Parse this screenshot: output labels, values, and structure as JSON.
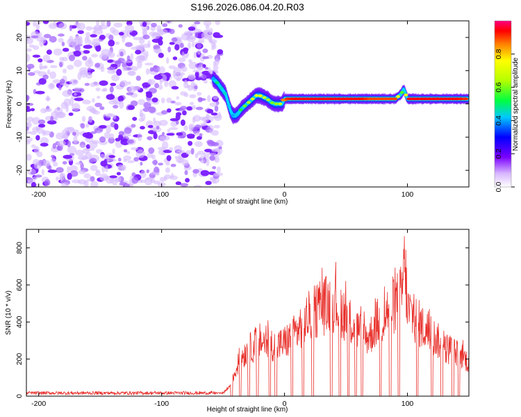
{
  "title": "S196.2026.086.04.20.R03",
  "chart_data": [
    {
      "type": "heatmap",
      "xlabel": "Height of straight line (km)",
      "ylabel": "Frequency (Hz)",
      "xlim": [
        -210,
        150
      ],
      "ylim": [
        -25,
        25
      ],
      "xticks": [
        -200,
        -100,
        0,
        100
      ],
      "yticks": [
        -20,
        -10,
        0,
        10,
        20
      ],
      "colorbar": {
        "label": "Normalized spectral amplitude",
        "range": [
          0,
          1
        ],
        "ticks": [
          "0.0",
          "0.2",
          "0.4",
          "0.6",
          "0.8"
        ],
        "tick_values": [
          0.0,
          0.2,
          0.4,
          0.6,
          0.8
        ]
      },
      "noise_region_x": [
        -210,
        -52
      ],
      "ridge": {
        "x": [
          -58,
          -55,
          -52,
          -48,
          -46,
          -44,
          -42,
          -40,
          -38,
          -35,
          -32,
          -29,
          -26,
          -23,
          -20,
          -17,
          -14,
          -11,
          -8,
          -5,
          -2,
          0,
          10,
          20,
          30,
          40,
          50,
          60,
          70,
          80,
          90,
          95,
          97,
          100,
          110,
          120,
          130,
          140,
          150
        ],
        "frequency": [
          7.5,
          6.5,
          5,
          3,
          0.5,
          -2,
          -3.5,
          -3.5,
          -3,
          -1.5,
          -0.5,
          0.5,
          1.5,
          2.5,
          2.5,
          2,
          1.5,
          0.5,
          0,
          0,
          0,
          1.5,
          1.5,
          1.5,
          1.5,
          1.5,
          1.5,
          1.5,
          1.5,
          1.5,
          1.5,
          3,
          4.5,
          1.5,
          1.5,
          1.5,
          1.5,
          1.5,
          1.5
        ],
        "amplitude": [
          0.4,
          0.5,
          0.45,
          0.45,
          0.4,
          0.45,
          0.4,
          0.4,
          0.45,
          0.55,
          0.6,
          0.65,
          0.7,
          0.75,
          0.75,
          0.7,
          0.65,
          0.6,
          0.6,
          0.65,
          0.7,
          0.9,
          0.95,
          0.95,
          0.95,
          0.95,
          0.95,
          0.95,
          0.9,
          0.9,
          0.9,
          0.6,
          0.5,
          0.95,
          0.95,
          0.95,
          0.95,
          0.95,
          0.9
        ]
      }
    },
    {
      "type": "line",
      "xlabel": "Height of straight line (km)",
      "ylabel": "SNR (10 * v/v)",
      "xlim": [
        -210,
        150
      ],
      "ylim": [
        0,
        900
      ],
      "xticks": [
        -200,
        -100,
        0,
        100
      ],
      "yticks": [
        0,
        200,
        400,
        600,
        800
      ],
      "color": "#e8302b",
      "envelope": {
        "x": [
          -210,
          -60,
          -50,
          -45,
          -40,
          -35,
          -30,
          -25,
          -20,
          -15,
          -10,
          -5,
          0,
          5,
          10,
          15,
          20,
          25,
          30,
          35,
          40,
          45,
          50,
          55,
          60,
          65,
          70,
          75,
          80,
          85,
          90,
          95,
          98,
          100,
          105,
          110,
          115,
          120,
          125,
          130,
          135,
          140,
          145,
          150
        ],
        "snr": [
          15,
          15,
          20,
          60,
          160,
          260,
          300,
          330,
          360,
          350,
          340,
          330,
          350,
          380,
          420,
          480,
          520,
          560,
          580,
          600,
          620,
          580,
          520,
          470,
          430,
          380,
          400,
          480,
          500,
          580,
          600,
          650,
          880,
          560,
          520,
          470,
          430,
          400,
          360,
          320,
          300,
          280,
          260,
          220
        ]
      },
      "dropouts_x": [
        -43,
        -36,
        -29,
        -22,
        -12,
        -7,
        6,
        15,
        23,
        38,
        45,
        52,
        58,
        63,
        78,
        86,
        93,
        108,
        120,
        128,
        137,
        142
      ]
    }
  ]
}
